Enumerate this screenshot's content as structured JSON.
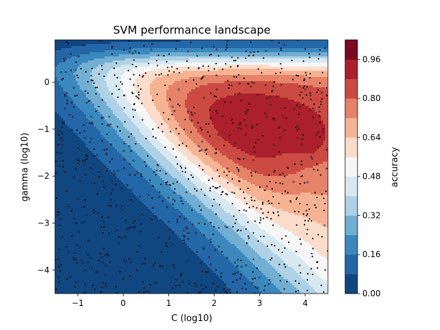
{
  "chart_data": {
    "type": "contour",
    "title": "SVM performance landscape",
    "xlabel": "C (log10)",
    "ylabel": "gamma (log10)",
    "xlim": [
      -1.5,
      4.5
    ],
    "ylim": [
      -4.5,
      0.9
    ],
    "xticks": [
      -1,
      0,
      1,
      2,
      3,
      4
    ],
    "yticks": [
      -4,
      -3,
      -2,
      -1,
      0
    ],
    "colormap": "RdBu_r",
    "colorbar": {
      "label": "accuracy",
      "levels": [
        0.0,
        0.08,
        0.16,
        0.24,
        0.32,
        0.4,
        0.48,
        0.56,
        0.64,
        0.72,
        0.8,
        0.88,
        0.96,
        1.04
      ],
      "ticks": [
        0.0,
        0.16,
        0.32,
        0.48,
        0.64,
        0.8,
        0.96
      ],
      "tick_labels": [
        "0.00",
        "0.16",
        "0.32",
        "0.48",
        "0.64",
        "0.80",
        "0.96"
      ],
      "band_colors": [
        "#114781",
        "#2467a9",
        "#3b88be",
        "#72aed2",
        "#aed1e5",
        "#d7e8f1",
        "#f6f6f6",
        "#fbdbc9",
        "#f6b394",
        "#e58267",
        "#cb4b43",
        "#ac1f2c",
        "#7c0822"
      ]
    },
    "scatter": {
      "marker_color": "#000000",
      "n_points": 1000,
      "description_visible": "sampled configurations"
    }
  }
}
